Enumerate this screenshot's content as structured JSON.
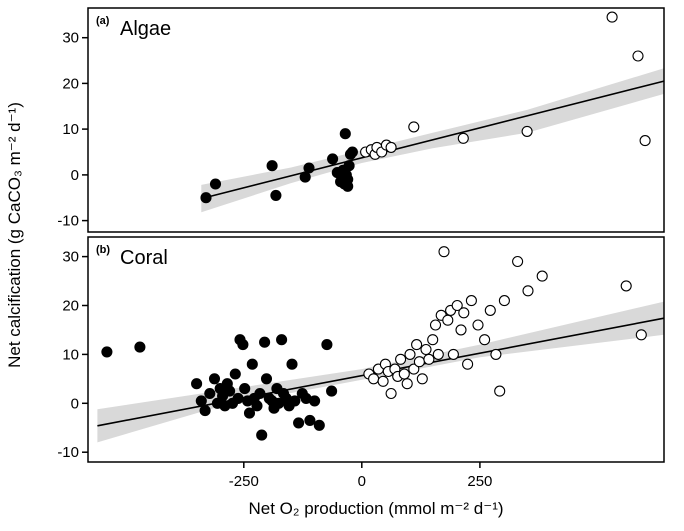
{
  "figure": {
    "xlabel": "Net O₂ production (mmol m⁻² d⁻¹)",
    "ylabel": "Net calcification (g CaCO₃ m⁻² d⁻¹)"
  },
  "chart_data": {
    "type": "scatter",
    "title": "",
    "xlabel": "Net O₂ production (mmol m⁻² d⁻¹)",
    "ylabel": "Net calcification (g CaCO₃ m⁻² d⁻¹)",
    "xlim": [
      -580,
      640
    ],
    "xticks": [
      -250,
      0,
      250
    ],
    "grid": false,
    "legend": "none",
    "colors": {
      "regression_line": "#000000",
      "confidence_band": "#d9d9d9",
      "filled_marker": "#000000",
      "open_marker_fill": "#ffffff",
      "marker_stroke": "#000000"
    },
    "panels": [
      {
        "panel_tag": "(a)",
        "panel_label": "Algae",
        "ylim": [
          -12.5,
          36.5
        ],
        "yticks": [
          -10,
          0,
          10,
          20,
          30
        ],
        "regression_line": {
          "x": [
            -340,
            640
          ],
          "y": [
            -5.2,
            20.5
          ]
        },
        "confidence_band": {
          "x": [
            -340,
            -150,
            0,
            150,
            350,
            640
          ],
          "upper": [
            -2.2,
            1.6,
            5.4,
            9.2,
            14.2,
            23.3
          ],
          "lower": [
            -8.2,
            -1.8,
            2.6,
            5.8,
            9.2,
            17.7
          ]
        },
        "series": [
          {
            "name": "filled-circles",
            "marker": "filled",
            "points": [
              [
                -330,
                -5
              ],
              [
                -310,
                -2
              ],
              [
                -190,
                2
              ],
              [
                -182,
                -4.5
              ],
              [
                -120,
                -0.5
              ],
              [
                -112,
                1.5
              ],
              [
                -62,
                3.5
              ],
              [
                -52,
                0.5
              ],
              [
                -45,
                -1.5
              ],
              [
                -40,
                1
              ],
              [
                -37,
                -2
              ],
              [
                -35,
                9
              ],
              [
                -33,
                0
              ],
              [
                -30,
                -1
              ],
              [
                -30,
                -2.5
              ],
              [
                -27,
                2
              ],
              [
                -24,
                4.5
              ],
              [
                -20,
                5
              ]
            ]
          },
          {
            "name": "open-circles",
            "marker": "open",
            "points": [
              [
                8,
                5
              ],
              [
                20,
                5.5
              ],
              [
                28,
                4.5
              ],
              [
                32,
                6
              ],
              [
                42,
                5
              ],
              [
                52,
                6.5
              ],
              [
                62,
                6
              ],
              [
                110,
                10.5
              ],
              [
                215,
                8
              ],
              [
                350,
                9.5
              ],
              [
                530,
                34.5
              ],
              [
                585,
                26
              ],
              [
                600,
                7.5
              ]
            ]
          }
        ]
      },
      {
        "panel_tag": "(b)",
        "panel_label": "Coral",
        "ylim": [
          -12,
          34
        ],
        "yticks": [
          -10,
          0,
          10,
          20,
          30
        ],
        "regression_line": {
          "x": [
            -560,
            640
          ],
          "y": [
            -4.6,
            17.4
          ]
        },
        "confidence_band": {
          "x": [
            -560,
            -300,
            0,
            250,
            640
          ],
          "upper": [
            -1.2,
            2.6,
            7.0,
            12.0,
            20.8
          ],
          "lower": [
            -8.0,
            -0.6,
            4.8,
            9.4,
            14.0
          ]
        },
        "series": [
          {
            "name": "filled-circles",
            "marker": "filled",
            "points": [
              [
                -540,
                10.5
              ],
              [
                -470,
                11.5
              ],
              [
                -350,
                4
              ],
              [
                -340,
                0.5
              ],
              [
                -332,
                -1.5
              ],
              [
                -322,
                2
              ],
              [
                -312,
                5
              ],
              [
                -306,
                0
              ],
              [
                -300,
                3
              ],
              [
                -295,
                1.5
              ],
              [
                -290,
                -0.5
              ],
              [
                -285,
                4
              ],
              [
                -280,
                2.5
              ],
              [
                -274,
                0
              ],
              [
                -268,
                6
              ],
              [
                -262,
                1
              ],
              [
                -258,
                13
              ],
              [
                -252,
                12
              ],
              [
                -248,
                3
              ],
              [
                -242,
                0.5
              ],
              [
                -238,
                -2
              ],
              [
                -232,
                8
              ],
              [
                -228,
                1
              ],
              [
                -222,
                -0.5
              ],
              [
                -216,
                2
              ],
              [
                -212,
                -6.5
              ],
              [
                -206,
                12.5
              ],
              [
                -202,
                5
              ],
              [
                -196,
                1
              ],
              [
                -190,
                0.5
              ],
              [
                -186,
                -1
              ],
              [
                -180,
                3
              ],
              [
                -176,
                0
              ],
              [
                -170,
                13
              ],
              [
                -166,
                2
              ],
              [
                -160,
                1
              ],
              [
                -154,
                -0.5
              ],
              [
                -148,
                8
              ],
              [
                -142,
                0.5
              ],
              [
                -134,
                -4
              ],
              [
                -126,
                2
              ],
              [
                -118,
                1
              ],
              [
                -110,
                -3.5
              ],
              [
                -100,
                0.5
              ],
              [
                -90,
                -4.5
              ],
              [
                -74,
                12
              ],
              [
                -64,
                2.5
              ]
            ]
          },
          {
            "name": "open-circles",
            "marker": "open",
            "points": [
              [
                15,
                6
              ],
              [
                25,
                5
              ],
              [
                35,
                7
              ],
              [
                45,
                4.5
              ],
              [
                50,
                8
              ],
              [
                56,
                6.5
              ],
              [
                62,
                2
              ],
              [
                70,
                7
              ],
              [
                76,
                5.5
              ],
              [
                82,
                9
              ],
              [
                90,
                6
              ],
              [
                96,
                4
              ],
              [
                102,
                10
              ],
              [
                110,
                7
              ],
              [
                116,
                12
              ],
              [
                122,
                8.5
              ],
              [
                128,
                5
              ],
              [
                136,
                11
              ],
              [
                142,
                9
              ],
              [
                150,
                13
              ],
              [
                156,
                16
              ],
              [
                162,
                10
              ],
              [
                168,
                18
              ],
              [
                174,
                31
              ],
              [
                182,
                17
              ],
              [
                188,
                19
              ],
              [
                194,
                10
              ],
              [
                202,
                20
              ],
              [
                210,
                15
              ],
              [
                216,
                18.5
              ],
              [
                224,
                8
              ],
              [
                232,
                21
              ],
              [
                246,
                16
              ],
              [
                260,
                13
              ],
              [
                272,
                19
              ],
              [
                284,
                10
              ],
              [
                292,
                2.5
              ],
              [
                302,
                21
              ],
              [
                330,
                29
              ],
              [
                352,
                23
              ],
              [
                382,
                26
              ],
              [
                560,
                24
              ],
              [
                592,
                14
              ]
            ]
          }
        ]
      }
    ]
  }
}
